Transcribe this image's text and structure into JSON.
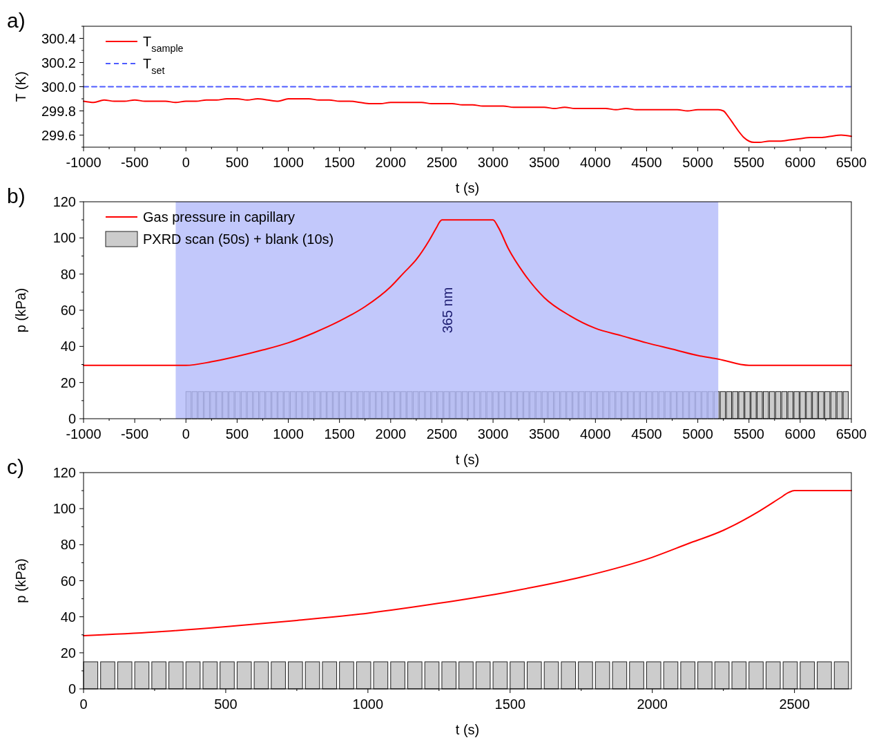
{
  "chart_data": [
    {
      "type": "line",
      "title": "a)",
      "xlabel": "t (s)",
      "ylabel": "T (K)",
      "xlim": [
        -1000,
        6500
      ],
      "ylim": [
        299.5,
        300.5
      ],
      "xticks": [
        -1000,
        {
          "value": -750,
          "label": null
        },
        -500,
        {
          "value": -250,
          "label": null
        },
        0,
        {
          "value": 250,
          "label": null
        },
        500,
        {
          "value": 750,
          "label": null
        },
        1000,
        {
          "value": 1250,
          "label": null
        },
        1500,
        {
          "value": 1750,
          "label": null
        },
        2000,
        {
          "value": 2250,
          "label": null
        },
        2500,
        {
          "value": 2750,
          "label": null
        },
        3000,
        {
          "value": 3250,
          "label": null
        },
        3500,
        {
          "value": 3750,
          "label": null
        },
        4000,
        {
          "value": 4250,
          "label": null
        },
        4500,
        {
          "value": 4750,
          "label": null
        },
        5000,
        {
          "value": 5250,
          "label": null
        },
        5500,
        {
          "value": 5750,
          "label": null
        },
        6000,
        {
          "value": 6250,
          "label": null
        },
        6500
      ],
      "yticks": [
        {
          "value": 299.5,
          "label": null
        },
        299.6,
        {
          "value": 299.7,
          "label": null
        },
        299.8,
        {
          "value": 299.9,
          "label": null
        },
        {
          "value": 300,
          "label": "300.0"
        },
        {
          "value": 300.1,
          "label": null
        },
        300.2,
        {
          "value": 300.3,
          "label": null
        },
        300.4,
        {
          "value": 300.5,
          "label": null
        }
      ],
      "legend": "top left",
      "grid": false,
      "series": [
        {
          "name": "T$_{sample}$",
          "color": "#ff0000",
          "x": [
            -1000,
            -900,
            -800,
            -700,
            -600,
            -500,
            -400,
            -300,
            -200,
            -100,
            0,
            100,
            200,
            300,
            400,
            500,
            600,
            700,
            800,
            900,
            1000,
            1100,
            1200,
            1300,
            1400,
            1500,
            1600,
            1700,
            1800,
            1900,
            2000,
            2100,
            2200,
            2300,
            2400,
            2500,
            2600,
            2700,
            2800,
            2900,
            3000,
            3100,
            3200,
            3300,
            3400,
            3500,
            3600,
            3700,
            3800,
            3900,
            4000,
            4100,
            4200,
            4300,
            4400,
            4500,
            4600,
            4700,
            4800,
            4900,
            5000,
            5100,
            5200,
            5250,
            5300,
            5350,
            5400,
            5450,
            5500,
            5550,
            5600,
            5700,
            5800,
            5900,
            6000,
            6100,
            6200,
            6300,
            6400,
            6500
          ],
          "values": [
            299.88,
            299.87,
            299.89,
            299.88,
            299.88,
            299.89,
            299.88,
            299.88,
            299.88,
            299.87,
            299.88,
            299.88,
            299.89,
            299.89,
            299.9,
            299.9,
            299.89,
            299.9,
            299.89,
            299.88,
            299.9,
            299.9,
            299.9,
            299.89,
            299.89,
            299.88,
            299.88,
            299.87,
            299.86,
            299.86,
            299.87,
            299.87,
            299.87,
            299.87,
            299.86,
            299.86,
            299.86,
            299.85,
            299.85,
            299.84,
            299.84,
            299.84,
            299.83,
            299.83,
            299.83,
            299.83,
            299.82,
            299.83,
            299.82,
            299.82,
            299.82,
            299.82,
            299.81,
            299.82,
            299.81,
            299.81,
            299.81,
            299.81,
            299.81,
            299.8,
            299.81,
            299.81,
            299.81,
            299.8,
            299.75,
            299.69,
            299.63,
            299.58,
            299.55,
            299.54,
            299.54,
            299.55,
            299.55,
            299.56,
            299.57,
            299.58,
            299.58,
            299.59,
            299.6,
            299.59
          ]
        },
        {
          "name": "T$_{set}$",
          "color": "#4d5bff",
          "line_style": "dashed",
          "x": [
            -1000,
            6500
          ],
          "values": [
            300,
            300
          ]
        }
      ]
    },
    {
      "type": "line",
      "title": "b)",
      "xlabel": "t (s)",
      "ylabel": "p (kPa)",
      "xlim": [
        -1000,
        6500
      ],
      "ylim": [
        0,
        120
      ],
      "xticks": [
        -1000,
        {
          "value": -750,
          "label": null
        },
        -500,
        {
          "value": -250,
          "label": null
        },
        0,
        {
          "value": 250,
          "label": null
        },
        500,
        {
          "value": 750,
          "label": null
        },
        1000,
        {
          "value": 1250,
          "label": null
        },
        1500,
        {
          "value": 1750,
          "label": null
        },
        2000,
        {
          "value": 2250,
          "label": null
        },
        2500,
        {
          "value": 2750,
          "label": null
        },
        3000,
        {
          "value": 3250,
          "label": null
        },
        3500,
        {
          "value": 3750,
          "label": null
        },
        4000,
        {
          "value": 4250,
          "label": null
        },
        4500,
        {
          "value": 4750,
          "label": null
        },
        5000,
        {
          "value": 5250,
          "label": null
        },
        5500,
        {
          "value": 5750,
          "label": null
        },
        6000,
        {
          "value": 6250,
          "label": null
        },
        6500
      ],
      "yticks": [
        0,
        {
          "value": 10,
          "label": null
        },
        20,
        {
          "value": 30,
          "label": null
        },
        40,
        {
          "value": 50,
          "label": null
        },
        60,
        {
          "value": 70,
          "label": null
        },
        80,
        {
          "value": 90,
          "label": null
        },
        100,
        {
          "value": 110,
          "label": null
        },
        120
      ],
      "legend": "top left",
      "grid": false,
      "bands": [
        {
          "axis": "x",
          "from": -100,
          "to": 5200,
          "label": "365 nm",
          "color": "#b4bcfa"
        }
      ],
      "series": [
        {
          "name": "Gas pressure in capillary",
          "color": "#ff0000",
          "x": [
            -1000,
            0,
            250,
            500,
            750,
            1000,
            1250,
            1500,
            1750,
            2000,
            2125,
            2250,
            2375,
            2450,
            2480,
            2500,
            3000,
            3050,
            3150,
            3300,
            3500,
            3750,
            4000,
            4250,
            4500,
            4750,
            5000,
            5200,
            5500,
            6500
          ],
          "values": [
            29.5,
            29.5,
            31.5,
            34.5,
            38,
            42,
            47.5,
            54,
            62,
            73,
            80.5,
            88,
            98.5,
            106,
            109,
            110,
            110,
            106,
            94,
            80.5,
            67,
            57,
            50,
            46,
            42,
            38.5,
            35,
            33,
            29.5,
            29.5
          ]
        },
        {
          "name": "PXRD scan (50s) + blank (10s)",
          "type": "histogram",
          "color": "#cccccc",
          "bins": [
            0,
            50,
            60,
            110,
            120,
            170,
            180,
            230,
            240,
            290,
            300,
            350,
            360,
            410,
            420,
            470,
            480,
            530,
            540,
            590,
            600,
            650,
            660,
            710,
            720,
            770,
            780,
            830,
            840,
            890,
            900,
            950,
            960,
            1010,
            1020,
            1070,
            1080,
            1130,
            1140,
            1190,
            1200,
            1250,
            1260,
            1310,
            1320,
            1370,
            1380,
            1430,
            1440,
            1490,
            1500,
            1550,
            1560,
            1610,
            1620,
            1670,
            1680,
            1730,
            1740,
            1790,
            1800,
            1850,
            1860,
            1910,
            1920,
            1970,
            1980,
            2030,
            2040,
            2090,
            2100,
            2150,
            2160,
            2210,
            2220,
            2270,
            2280,
            2330,
            2340,
            2390,
            2400,
            2450,
            2460,
            2510,
            2520,
            2570,
            2580,
            2630,
            2640,
            2690,
            2700,
            2750,
            2760,
            2810,
            2820,
            2870,
            2880,
            2930,
            2940,
            2990,
            3000,
            3050,
            3060,
            3110,
            3120,
            3170,
            3180,
            3230,
            3240,
            3290,
            3300,
            3350,
            3360,
            3410,
            3420,
            3470,
            3480,
            3530,
            3540,
            3590,
            3600,
            3650,
            3660,
            3710,
            3720,
            3770,
            3780,
            3830,
            3840,
            3890,
            3900,
            3950,
            3960,
            4010,
            4020,
            4070,
            4080,
            4130,
            4140,
            4190,
            4200,
            4250,
            4260,
            4310,
            4320,
            4370,
            4380,
            4430,
            4440,
            4490,
            4500,
            4550,
            4560,
            4610,
            4620,
            4670,
            4680,
            4730,
            4740,
            4790,
            4800,
            4850,
            4860,
            4910,
            4920,
            4970,
            4980,
            5030,
            5040,
            5090,
            5100,
            5150,
            5160,
            5210,
            5220,
            5270,
            5280,
            5330,
            5340,
            5390,
            5400,
            5450,
            5460,
            5510,
            5520,
            5570,
            5580,
            5630,
            5640,
            5690,
            5700,
            5750,
            5760,
            5810,
            5820,
            5870,
            5880,
            5930,
            5940,
            5990,
            6000,
            6050,
            6060,
            6110,
            6120,
            6170,
            6180,
            6230,
            6240,
            6290,
            6300,
            6350,
            6360,
            6410,
            6420,
            6470
          ],
          "values": [
            15,
            0,
            15,
            0,
            15,
            0,
            15,
            0,
            15,
            0,
            15,
            0,
            15,
            0,
            15,
            0,
            15,
            0,
            15,
            0,
            15,
            0,
            15,
            0,
            15,
            0,
            15,
            0,
            15,
            0,
            15,
            0,
            15,
            0,
            15,
            0,
            15,
            0,
            15,
            0,
            15,
            0,
            15,
            0,
            15,
            0,
            15,
            0,
            15,
            0,
            15,
            0,
            15,
            0,
            15,
            0,
            15,
            0,
            15,
            0,
            15,
            0,
            15,
            0,
            15,
            0,
            15,
            0,
            15,
            0,
            15,
            0,
            15,
            0,
            15,
            0,
            15,
            0,
            15,
            0,
            15,
            0,
            15,
            0,
            15,
            0,
            15,
            0,
            15,
            0,
            15,
            0,
            15,
            0,
            15,
            0,
            15,
            0,
            15,
            0,
            15,
            0,
            15,
            0,
            15,
            0,
            15,
            0,
            15,
            0,
            15,
            0,
            15,
            0,
            15,
            0,
            15,
            0,
            15,
            0,
            15,
            0,
            15,
            0,
            15,
            0,
            15,
            0,
            15,
            0,
            15,
            0,
            15,
            0,
            15,
            0,
            15,
            0,
            15,
            0,
            15,
            0,
            15,
            0,
            15,
            0,
            15,
            0,
            15,
            0,
            15,
            0,
            15,
            0,
            15,
            0,
            15,
            0,
            15,
            0,
            15,
            0,
            15,
            0,
            15,
            0,
            15,
            0,
            15,
            0,
            15,
            0,
            15,
            0,
            15,
            0,
            15,
            0,
            15,
            0,
            15,
            0,
            15,
            0,
            15,
            0,
            15,
            0,
            15,
            0,
            15,
            0,
            15,
            0,
            15,
            0,
            15,
            0,
            15,
            0,
            15,
            0,
            15,
            0,
            15,
            0,
            15,
            0,
            15,
            0,
            15,
            0,
            15,
            0,
            15
          ]
        }
      ]
    },
    {
      "type": "line",
      "xlabel": "t (s)",
      "ylabel": "p (kPa)",
      "title": "c)",
      "xlim": [
        0,
        2700
      ],
      "ylim": [
        0,
        120
      ],
      "xticks": [
        0,
        {
          "value": 250,
          "label": null
        },
        500,
        {
          "value": 750,
          "label": null
        },
        1000,
        {
          "value": 1250,
          "label": null
        },
        1500,
        {
          "value": 1750,
          "label": null
        },
        2000,
        {
          "value": 2250,
          "label": null
        },
        2500
      ],
      "yticks": [
        0,
        {
          "value": 10,
          "label": null
        },
        20,
        {
          "value": 30,
          "label": null
        },
        40,
        {
          "value": 50,
          "label": null
        },
        60,
        {
          "value": 70,
          "label": null
        },
        80,
        {
          "value": 90,
          "label": null
        },
        100,
        {
          "value": 110,
          "label": null
        },
        120
      ],
      "grid": false,
      "series": [
        {
          "color": "#ff0000",
          "x": [
            0,
            250,
            500,
            750,
            1000,
            1250,
            1500,
            1750,
            2000,
            2125,
            2250,
            2375,
            2450,
            2480,
            2500,
            2700
          ],
          "values": [
            29.5,
            31.5,
            34.5,
            38,
            42,
            47.5,
            54,
            62,
            73,
            80.5,
            88,
            98.5,
            106,
            109,
            110,
            110
          ]
        },
        {
          "type": "histogram",
          "color": "#cccccc",
          "bins": [
            0,
            50,
            60,
            110,
            120,
            170,
            180,
            230,
            240,
            290,
            300,
            350,
            360,
            410,
            420,
            470,
            480,
            530,
            540,
            590,
            600,
            650,
            660,
            710,
            720,
            770,
            780,
            830,
            840,
            890,
            900,
            950,
            960,
            1010,
            1020,
            1070,
            1080,
            1130,
            1140,
            1190,
            1200,
            1250,
            1260,
            1310,
            1320,
            1370,
            1380,
            1430,
            1440,
            1490,
            1500,
            1550,
            1560,
            1610,
            1620,
            1670,
            1680,
            1730,
            1740,
            1790,
            1800,
            1850,
            1860,
            1910,
            1920,
            1970,
            1980,
            2030,
            2040,
            2090,
            2100,
            2150,
            2160,
            2210,
            2220,
            2270,
            2280,
            2330,
            2340,
            2390,
            2400,
            2450,
            2460,
            2510,
            2520,
            2570,
            2580,
            2630,
            2640,
            2690
          ],
          "values": [
            15,
            0,
            15,
            0,
            15,
            0,
            15,
            0,
            15,
            0,
            15,
            0,
            15,
            0,
            15,
            0,
            15,
            0,
            15,
            0,
            15,
            0,
            15,
            0,
            15,
            0,
            15,
            0,
            15,
            0,
            15,
            0,
            15,
            0,
            15,
            0,
            15,
            0,
            15,
            0,
            15,
            0,
            15,
            0,
            15,
            0,
            15,
            0,
            15,
            0,
            15,
            0,
            15,
            0,
            15,
            0,
            15,
            0,
            15,
            0,
            15,
            0,
            15,
            0,
            15,
            0,
            15,
            0,
            15,
            0,
            15,
            0,
            15,
            0,
            15,
            0,
            15,
            0,
            15,
            0,
            15,
            0,
            15,
            0,
            15,
            0,
            15,
            0,
            15
          ]
        }
      ]
    }
  ]
}
